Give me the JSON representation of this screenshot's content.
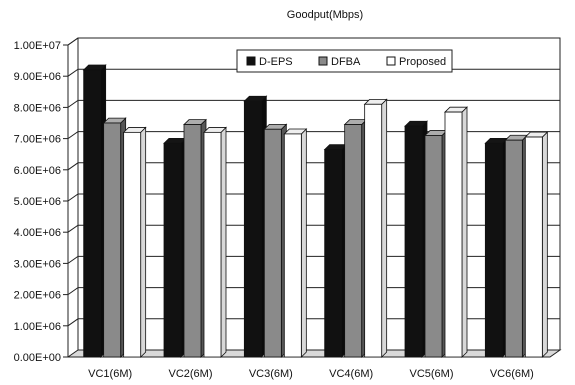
{
  "chart_data": {
    "type": "bar",
    "title": "Goodput(Mbps)",
    "xlabel": "",
    "ylabel": "",
    "categories": [
      "VC1(6M)",
      "VC2(6M)",
      "VC3(6M)",
      "VC4(6M)",
      "VC5(6M)",
      "VC6(6M)"
    ],
    "series": [
      {
        "name": "D-EPS",
        "color": "#111111",
        "values": [
          9200000,
          6850000,
          8200000,
          6650000,
          7400000,
          6850000
        ]
      },
      {
        "name": "DFBA",
        "color": "#8a8a8a",
        "values": [
          7500000,
          7450000,
          7300000,
          7450000,
          7100000,
          6950000
        ]
      },
      {
        "name": "Proposed",
        "color": "#ffffff",
        "values": [
          7200000,
          7200000,
          7150000,
          8100000,
          7850000,
          7050000
        ]
      }
    ],
    "ylim": [
      0,
      10000000
    ],
    "yticks": [
      0,
      1000000,
      2000000,
      3000000,
      4000000,
      5000000,
      6000000,
      7000000,
      8000000,
      9000000,
      10000000
    ],
    "ytick_labels": [
      "0.00E+00",
      "1.00E+06",
      "2.00E+06",
      "3.00E+06",
      "4.00E+06",
      "5.00E+06",
      "6.00E+06",
      "7.00E+06",
      "8.00E+06",
      "9.00E+06",
      "1.00E+07"
    ],
    "grid": true,
    "legend_position": "top-right",
    "style": "3d-bars"
  }
}
